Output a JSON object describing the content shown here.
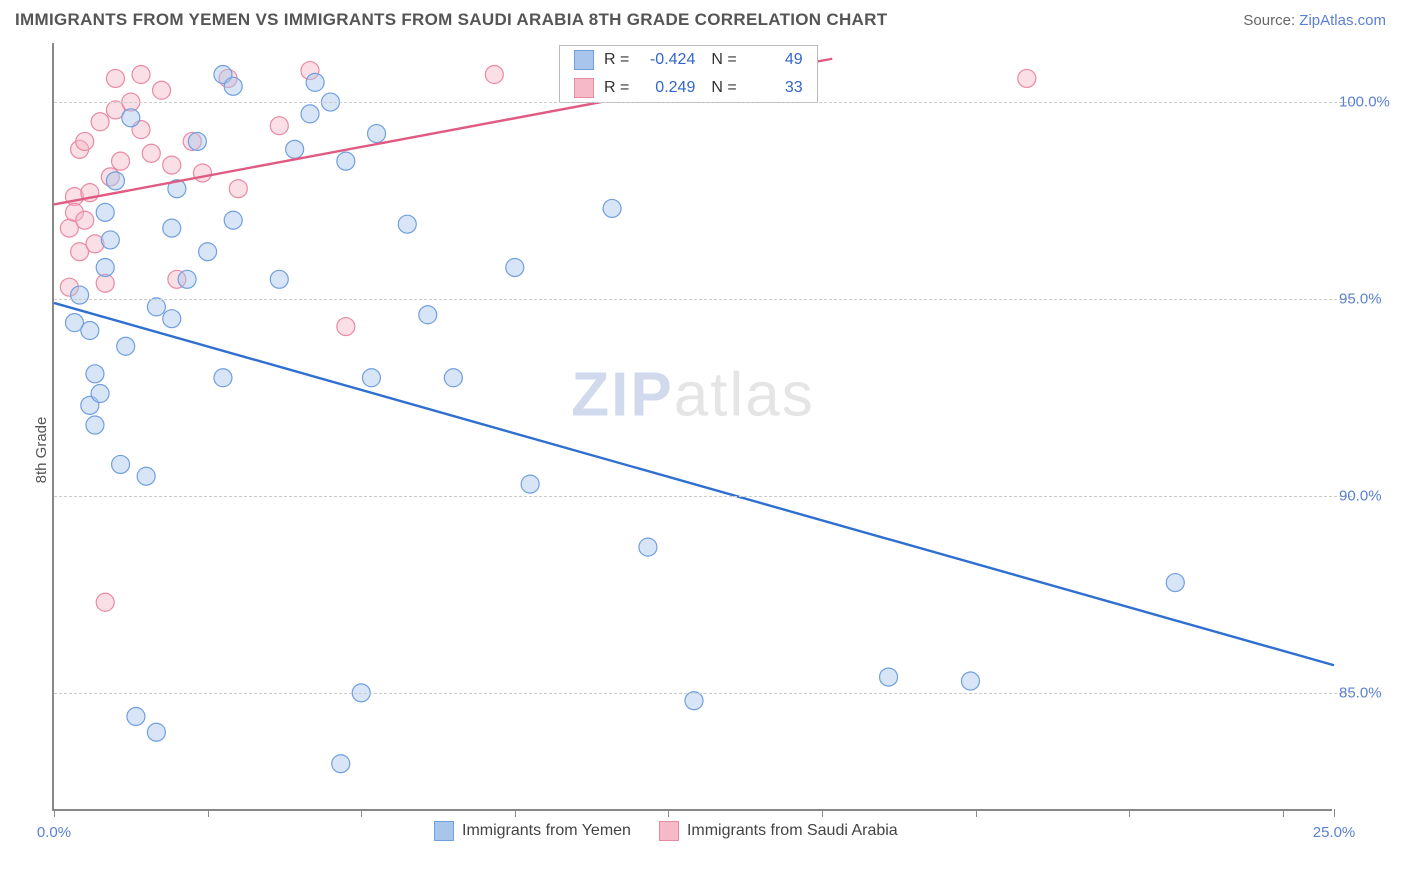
{
  "header": {
    "title": "IMMIGRANTS FROM YEMEN VS IMMIGRANTS FROM SAUDI ARABIA 8TH GRADE CORRELATION CHART",
    "source_label": "Source:",
    "source_site": "ZipAtlas.com"
  },
  "chart": {
    "type": "scatter",
    "ylabel": "8th Grade",
    "watermark_big": "ZIP",
    "watermark_rest": "atlas",
    "xlim": [
      0,
      25
    ],
    "ylim": [
      82,
      101.5
    ],
    "xticks": [
      0,
      3,
      6,
      9,
      12,
      15,
      18,
      21,
      24,
      25
    ],
    "xtick_labels_show": {
      "0": "0.0%",
      "25": "25.0%"
    },
    "yticks": [
      85,
      90,
      95,
      100
    ],
    "ytick_labels": {
      "85": "85.0%",
      "90": "90.0%",
      "95": "95.0%",
      "100": "100.0%"
    },
    "grid_color": "#cccccc",
    "axis_color": "#888888",
    "background_color": "#ffffff",
    "marker_radius": 9,
    "series": [
      {
        "name": "Immigrants from Yemen",
        "color_fill": "#a9c5ec",
        "color_stroke": "#6f9fe0",
        "legend_r": "-0.424",
        "legend_n": "49",
        "trendline": {
          "x1": 0,
          "y1": 94.9,
          "x2": 25,
          "y2": 85.7,
          "color": "#2f6fd0"
        },
        "points": [
          [
            0.4,
            94.4
          ],
          [
            0.5,
            95.1
          ],
          [
            0.7,
            94.2
          ],
          [
            0.7,
            92.3
          ],
          [
            0.8,
            93.1
          ],
          [
            0.8,
            91.8
          ],
          [
            0.9,
            92.6
          ],
          [
            1.0,
            95.8
          ],
          [
            1.0,
            97.2
          ],
          [
            1.1,
            96.5
          ],
          [
            1.2,
            98.0
          ],
          [
            1.3,
            90.8
          ],
          [
            1.4,
            93.8
          ],
          [
            1.5,
            99.6
          ],
          [
            1.6,
            84.4
          ],
          [
            1.8,
            90.5
          ],
          [
            2.0,
            84.0
          ],
          [
            2.0,
            94.8
          ],
          [
            2.3,
            94.5
          ],
          [
            2.3,
            96.8
          ],
          [
            2.4,
            97.8
          ],
          [
            2.6,
            95.5
          ],
          [
            2.8,
            99.0
          ],
          [
            3.0,
            96.2
          ],
          [
            3.3,
            93.0
          ],
          [
            3.3,
            100.7
          ],
          [
            3.5,
            97.0
          ],
          [
            3.5,
            100.4
          ],
          [
            4.4,
            95.5
          ],
          [
            4.7,
            98.8
          ],
          [
            5.0,
            99.7
          ],
          [
            5.1,
            100.5
          ],
          [
            5.4,
            100.0
          ],
          [
            5.6,
            83.2
          ],
          [
            5.7,
            98.5
          ],
          [
            6.0,
            85.0
          ],
          [
            6.2,
            93.0
          ],
          [
            6.3,
            99.2
          ],
          [
            6.9,
            96.9
          ],
          [
            7.3,
            94.6
          ],
          [
            7.8,
            93.0
          ],
          [
            9.0,
            95.8
          ],
          [
            9.3,
            90.3
          ],
          [
            10.9,
            97.3
          ],
          [
            11.6,
            88.7
          ],
          [
            12.5,
            84.8
          ],
          [
            16.3,
            85.4
          ],
          [
            17.9,
            85.3
          ],
          [
            21.9,
            87.8
          ]
        ]
      },
      {
        "name": "Immigrants from Saudi Arabia",
        "color_fill": "#f5b9c8",
        "color_stroke": "#e98aa3",
        "legend_r": "0.249",
        "legend_n": "33",
        "trendline": {
          "x1": 0,
          "y1": 97.4,
          "x2": 15.2,
          "y2": 101.1,
          "color": "#e05a82"
        },
        "points": [
          [
            0.3,
            96.8
          ],
          [
            0.3,
            95.3
          ],
          [
            0.4,
            97.6
          ],
          [
            0.4,
            97.2
          ],
          [
            0.5,
            96.2
          ],
          [
            0.5,
            98.8
          ],
          [
            0.6,
            97.0
          ],
          [
            0.6,
            99.0
          ],
          [
            0.7,
            97.7
          ],
          [
            0.8,
            96.4
          ],
          [
            0.9,
            99.5
          ],
          [
            1.0,
            87.3
          ],
          [
            1.0,
            95.4
          ],
          [
            1.1,
            98.1
          ],
          [
            1.2,
            99.8
          ],
          [
            1.2,
            100.6
          ],
          [
            1.3,
            98.5
          ],
          [
            1.5,
            100.0
          ],
          [
            1.7,
            99.3
          ],
          [
            1.7,
            100.7
          ],
          [
            1.9,
            98.7
          ],
          [
            2.1,
            100.3
          ],
          [
            2.3,
            98.4
          ],
          [
            2.4,
            95.5
          ],
          [
            2.7,
            99.0
          ],
          [
            2.9,
            98.2
          ],
          [
            3.4,
            100.6
          ],
          [
            3.6,
            97.8
          ],
          [
            4.4,
            99.4
          ],
          [
            5.0,
            100.8
          ],
          [
            5.7,
            94.3
          ],
          [
            8.6,
            100.7
          ],
          [
            19.0,
            100.6
          ]
        ]
      }
    ],
    "legend_top": {
      "R_label": "R =",
      "N_label": "N ="
    },
    "legend_bottom_labels": [
      "Immigrants from Yemen",
      "Immigrants from Saudi Arabia"
    ]
  }
}
